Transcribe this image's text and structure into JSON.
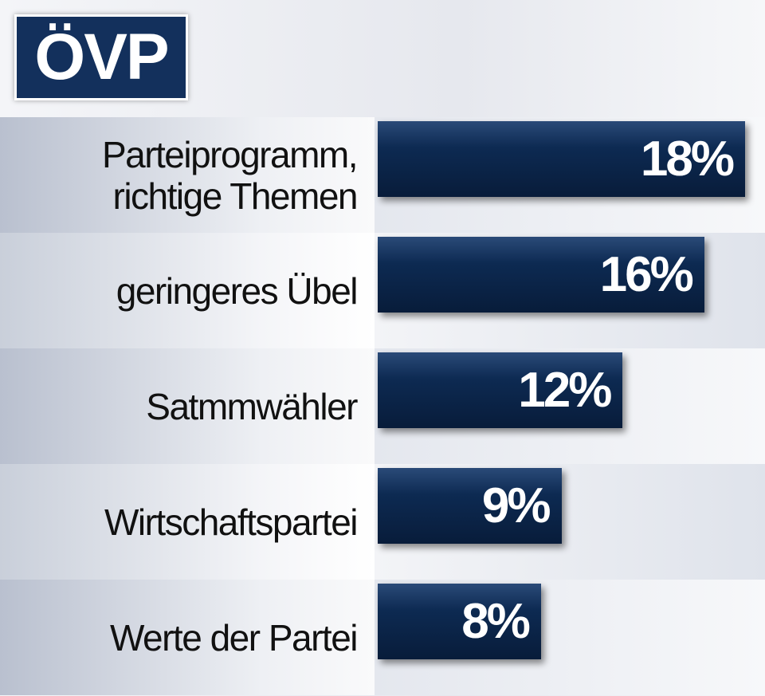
{
  "chart_data": {
    "type": "bar",
    "orientation": "horizontal",
    "title": "ÖVP",
    "categories": [
      "Parteiprogramm, richtige Themen",
      "geringeres Übel",
      "Satmmwähler",
      "Wirtschaftspartei",
      "Werte der Partei"
    ],
    "values": [
      18,
      16,
      12,
      9,
      8
    ],
    "value_labels": [
      "18%",
      "16%",
      "12%",
      "9%",
      "8%"
    ],
    "color": "#0d2a52"
  }
}
